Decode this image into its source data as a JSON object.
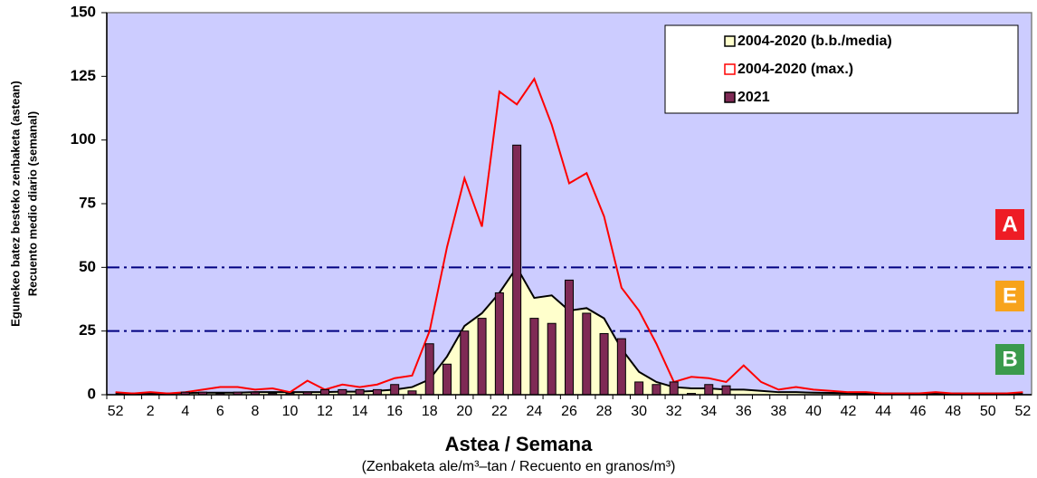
{
  "chart_data": {
    "type": "bar",
    "ylabel": [
      "Egunekeo batez besteko zenbaketa (astean)",
      "Recuento medio diario (semanal)"
    ],
    "xlabel": "Astea / Semana",
    "xsublabel": "(Zenbaketa ale/m³–tan / Recuento en granos/m³)",
    "categories": [
      "52",
      null,
      "2",
      null,
      "4",
      null,
      "6",
      null,
      "8",
      null,
      "10",
      null,
      "12",
      null,
      "14",
      null,
      "16",
      null,
      "18",
      null,
      "20",
      null,
      "22",
      null,
      "24",
      null,
      "26",
      null,
      "28",
      null,
      "30",
      null,
      "32",
      null,
      "34",
      null,
      "36",
      null,
      "38",
      null,
      "40",
      null,
      "42",
      null,
      "44",
      null,
      "46",
      null,
      "48",
      null,
      "50",
      null,
      "52"
    ],
    "series": [
      {
        "name": "2004-2020 (b.b./media)",
        "type": "area",
        "color": "#ffffcc",
        "line_color": "#000000",
        "values": [
          0.5,
          0.5,
          0.5,
          0.5,
          0.7,
          0.8,
          0.8,
          0.8,
          1,
          1,
          1,
          1,
          1,
          1.2,
          1.2,
          1.5,
          2,
          3,
          6,
          15,
          27,
          32,
          40,
          50,
          38,
          39,
          33,
          34,
          30,
          18,
          9,
          5,
          3,
          2.5,
          2.5,
          2,
          2,
          1.5,
          1,
          1,
          0.8,
          0.7,
          0.6,
          0.5,
          0.5,
          0.5,
          0.5,
          0.5,
          0.5,
          0.5,
          0.5,
          0.5,
          0.5
        ]
      },
      {
        "name": "2004-2020 (max.)",
        "type": "line",
        "color": "#ff0000",
        "values": [
          1,
          0.5,
          1,
          0.5,
          1,
          2,
          3,
          3,
          2,
          2.5,
          1,
          5.5,
          2,
          4,
          3,
          4,
          6.5,
          7.5,
          25,
          58,
          85,
          66,
          119,
          114,
          124,
          106,
          83,
          87,
          70,
          42,
          33,
          20,
          5,
          7,
          6.5,
          5,
          11.5,
          5,
          2,
          3,
          2,
          1.5,
          1,
          1,
          0.5,
          0.5,
          0.5,
          1,
          0.5,
          0.5,
          0.5,
          0.5,
          1
        ]
      },
      {
        "name": "2021",
        "type": "bar",
        "color": "#7f2a55",
        "values": [
          0,
          0,
          0,
          0,
          1,
          1,
          0.5,
          1,
          1,
          0.5,
          0.5,
          1,
          2,
          2,
          2,
          2,
          4,
          1.5,
          20,
          12,
          25,
          30,
          40,
          98,
          30,
          28,
          45,
          32,
          24,
          22,
          5,
          4,
          5,
          0.5,
          4,
          3.5,
          0,
          0,
          0,
          0,
          0,
          0,
          0,
          0,
          0,
          0,
          0,
          0,
          0,
          0,
          0,
          0,
          0
        ]
      }
    ],
    "reference_lines": [
      25,
      50
    ],
    "reference_color": "#000080",
    "annotations": [
      {
        "text": "A",
        "color": "#ee1c25"
      },
      {
        "text": "E",
        "color": "#f7a31c"
      },
      {
        "text": "B",
        "color": "#3a9a4c"
      }
    ],
    "ylim": [
      0,
      150
    ],
    "yticks": [
      0,
      25,
      50,
      75,
      100,
      125,
      150
    ],
    "background": "#ccccff"
  }
}
